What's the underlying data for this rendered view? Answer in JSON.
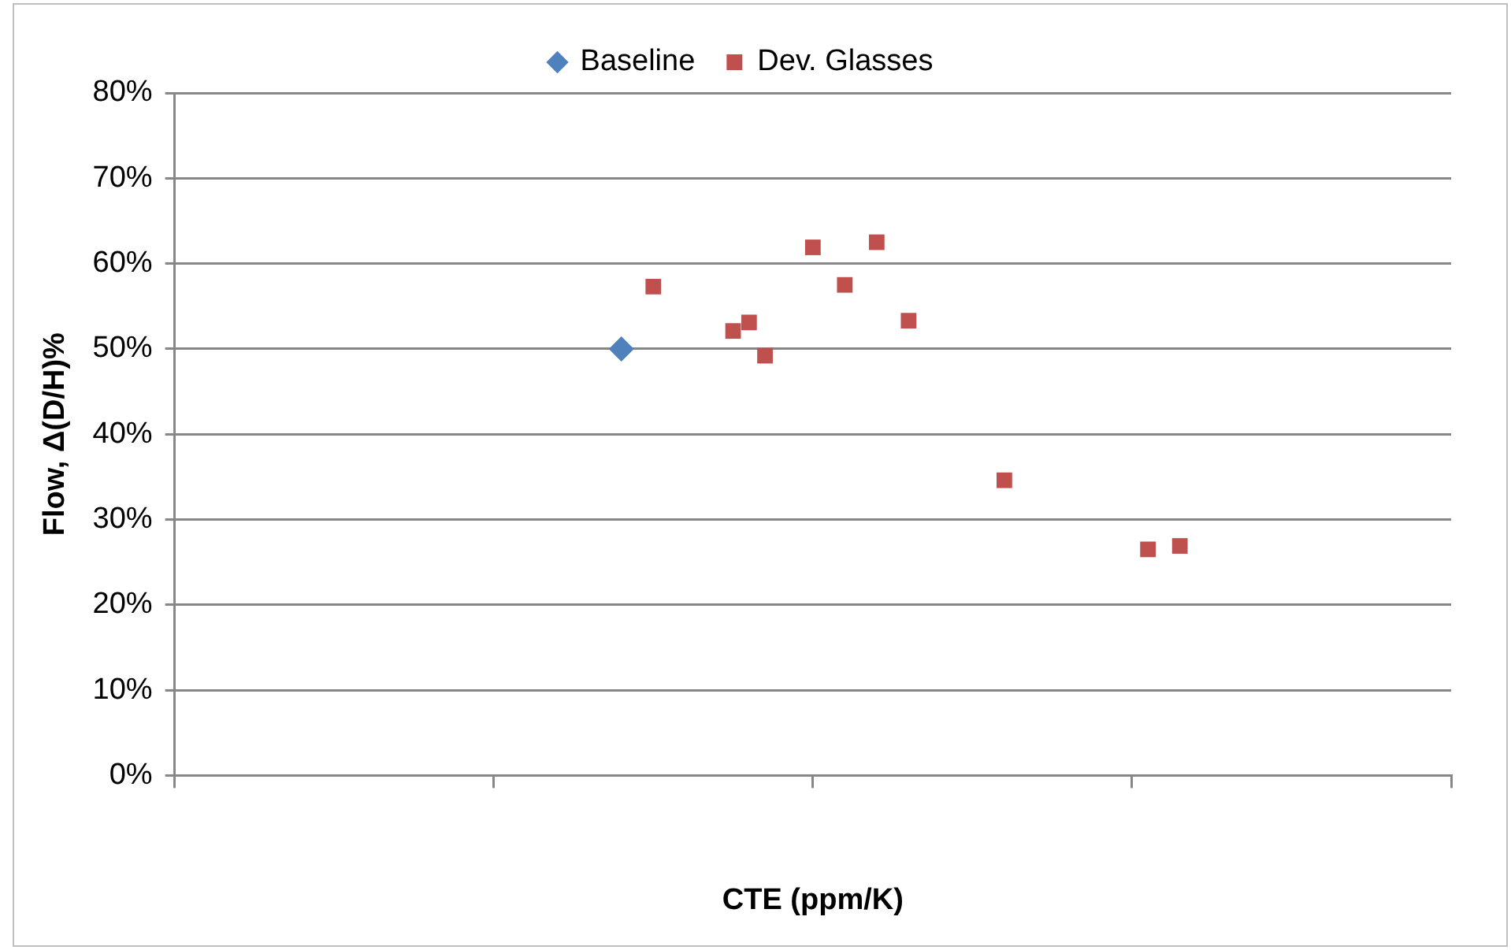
{
  "chart_data": {
    "type": "scatter",
    "xlabel": "CTE (ppm/K)",
    "ylabel": "Flow, Δ(D/H)%",
    "categories": [
      null,
      null,
      null,
      null,
      null,
      null,
      null,
      null,
      null,
      null,
      null,
      null,
      null,
      null,
      null,
      null,
      null,
      null,
      null,
      null,
      null,
      null,
      null,
      null,
      null,
      null,
      null,
      null,
      null,
      null,
      null,
      null,
      null,
      null,
      null,
      null,
      null,
      null,
      null,
      null,
      null,
      null,
      null,
      null,
      null,
      null,
      null,
      null,
      null,
      null,
      null,
      null,
      null,
      null,
      null,
      null,
      null,
      null,
      null,
      null,
      null,
      null,
      null,
      null,
      null,
      null,
      null,
      null,
      null,
      null,
      null,
      null,
      null,
      null,
      null,
      null,
      null,
      null,
      null,
      null,
      null
    ],
    "ylim": [
      0,
      80
    ],
    "yticks": [
      {
        "value": 0,
        "label": "0%"
      },
      {
        "value": 10,
        "label": "10%"
      },
      {
        "value": 20,
        "label": "20%"
      },
      {
        "value": 30,
        "label": "30%"
      },
      {
        "value": 40,
        "label": "40%"
      },
      {
        "value": 50,
        "label": "50%"
      },
      {
        "value": 60,
        "label": "60%"
      },
      {
        "value": 70,
        "label": "70%"
      },
      {
        "value": 80,
        "label": "80%"
      }
    ],
    "tick_labels": "y",
    "grid": "y",
    "legend": "top",
    "series": [
      {
        "name": "Baseline",
        "color": "#4f81bd",
        "marker": "diamond",
        "values": [
          null,
          null,
          null,
          null,
          null,
          null,
          null,
          null,
          null,
          null,
          null,
          null,
          null,
          null,
          null,
          null,
          null,
          null,
          null,
          null,
          null,
          null,
          null,
          null,
          null,
          null,
          null,
          null,
          50,
          null,
          null,
          null,
          null,
          null,
          null,
          null,
          null,
          null,
          null,
          null,
          null,
          null,
          null,
          null,
          null,
          null,
          null,
          null,
          null,
          null,
          null,
          null,
          null,
          null,
          null,
          null,
          null,
          null,
          null,
          null,
          null,
          null,
          null,
          null,
          null,
          null,
          null,
          null,
          null,
          null,
          null,
          null,
          null,
          null,
          null,
          null,
          null,
          null,
          null,
          null,
          null
        ]
      },
      {
        "name": "Dev. Glasses",
        "color": "#c0504d",
        "marker": "square",
        "values": [
          null,
          null,
          null,
          null,
          null,
          null,
          null,
          null,
          null,
          null,
          null,
          null,
          null,
          null,
          null,
          null,
          null,
          null,
          null,
          null,
          null,
          null,
          null,
          null,
          null,
          null,
          null,
          null,
          null,
          null,
          57.3,
          null,
          null,
          null,
          null,
          52.1,
          53.1,
          49.2,
          null,
          null,
          61.9,
          null,
          57.5,
          null,
          62.5,
          null,
          53.3,
          null,
          null,
          null,
          null,
          null,
          34.6,
          null,
          null,
          null,
          null,
          null,
          null,
          null,
          null,
          26.5,
          null,
          26.9,
          null,
          null,
          null,
          null,
          null,
          null,
          null,
          null,
          null,
          null,
          null,
          null,
          null,
          null,
          null,
          null,
          null
        ]
      }
    ]
  }
}
